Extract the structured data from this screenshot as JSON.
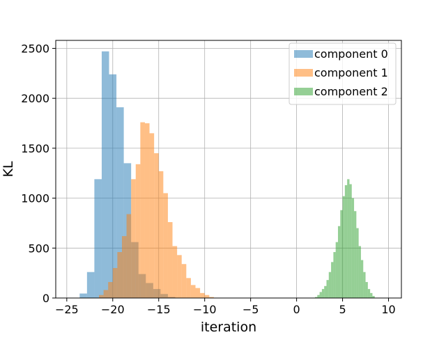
{
  "chart_data": {
    "type": "histogram",
    "title": "",
    "xlabel": "iteration",
    "ylabel": "KL",
    "xlim": [
      -26.2,
      11.4
    ],
    "ylim": [
      0,
      2580
    ],
    "xticks": [
      -25,
      -20,
      -15,
      -10,
      -5,
      0,
      5,
      10
    ],
    "yticks": [
      0,
      500,
      1000,
      1500,
      2000,
      2500
    ],
    "xtick_labels": [
      "−25",
      "−20",
      "−15",
      "−10",
      "−5",
      "0",
      "5",
      "10"
    ],
    "ytick_labels": [
      "0",
      "500",
      "1000",
      "1500",
      "2000",
      "2500"
    ],
    "grid": true,
    "legend_position": "top-right",
    "bar_alpha": 0.5,
    "series": [
      {
        "name": "component 0",
        "color": "#1f77b4",
        "bin_edges": [
          -23.6,
          -22.8,
          -22.0,
          -21.2,
          -20.4,
          -19.6,
          -18.8,
          -18.0,
          -17.2,
          -16.4,
          -15.6,
          -14.8,
          -14.0,
          -13.2
        ],
        "counts": [
          45,
          260,
          1190,
          2470,
          2240,
          1910,
          1350,
          560,
          240,
          150,
          90,
          40,
          10
        ]
      },
      {
        "name": "component 1",
        "color": "#ff7f0e",
        "bin_edges": [
          -21.5,
          -21.0,
          -20.5,
          -20.0,
          -19.5,
          -19.0,
          -18.5,
          -18.0,
          -17.5,
          -17.0,
          -16.5,
          -16.0,
          -15.5,
          -15.0,
          -14.5,
          -14.0,
          -13.5,
          -13.0,
          -12.5,
          -12.0,
          -11.5,
          -11.0,
          -10.5,
          -10.0,
          -9.5,
          -9.0
        ],
        "counts": [
          30,
          80,
          160,
          300,
          460,
          620,
          840,
          1190,
          1340,
          1760,
          1750,
          1650,
          1450,
          1270,
          1050,
          760,
          520,
          430,
          340,
          200,
          130,
          100,
          50,
          30,
          10
        ]
      },
      {
        "name": "component 2",
        "color": "#2ca02c",
        "bin_edges": [
          2.0,
          2.25,
          2.5,
          2.75,
          3.0,
          3.25,
          3.5,
          3.75,
          4.0,
          4.25,
          4.5,
          4.75,
          5.0,
          5.25,
          5.5,
          5.75,
          6.0,
          6.25,
          6.5,
          6.75,
          7.0,
          7.25,
          7.5,
          7.75,
          8.0,
          8.25,
          8.5
        ],
        "counts": [
          10,
          30,
          60,
          90,
          120,
          180,
          260,
          360,
          460,
          560,
          720,
          880,
          1020,
          1130,
          1190,
          1140,
          1000,
          870,
          700,
          520,
          380,
          260,
          160,
          90,
          50,
          20
        ]
      }
    ]
  }
}
